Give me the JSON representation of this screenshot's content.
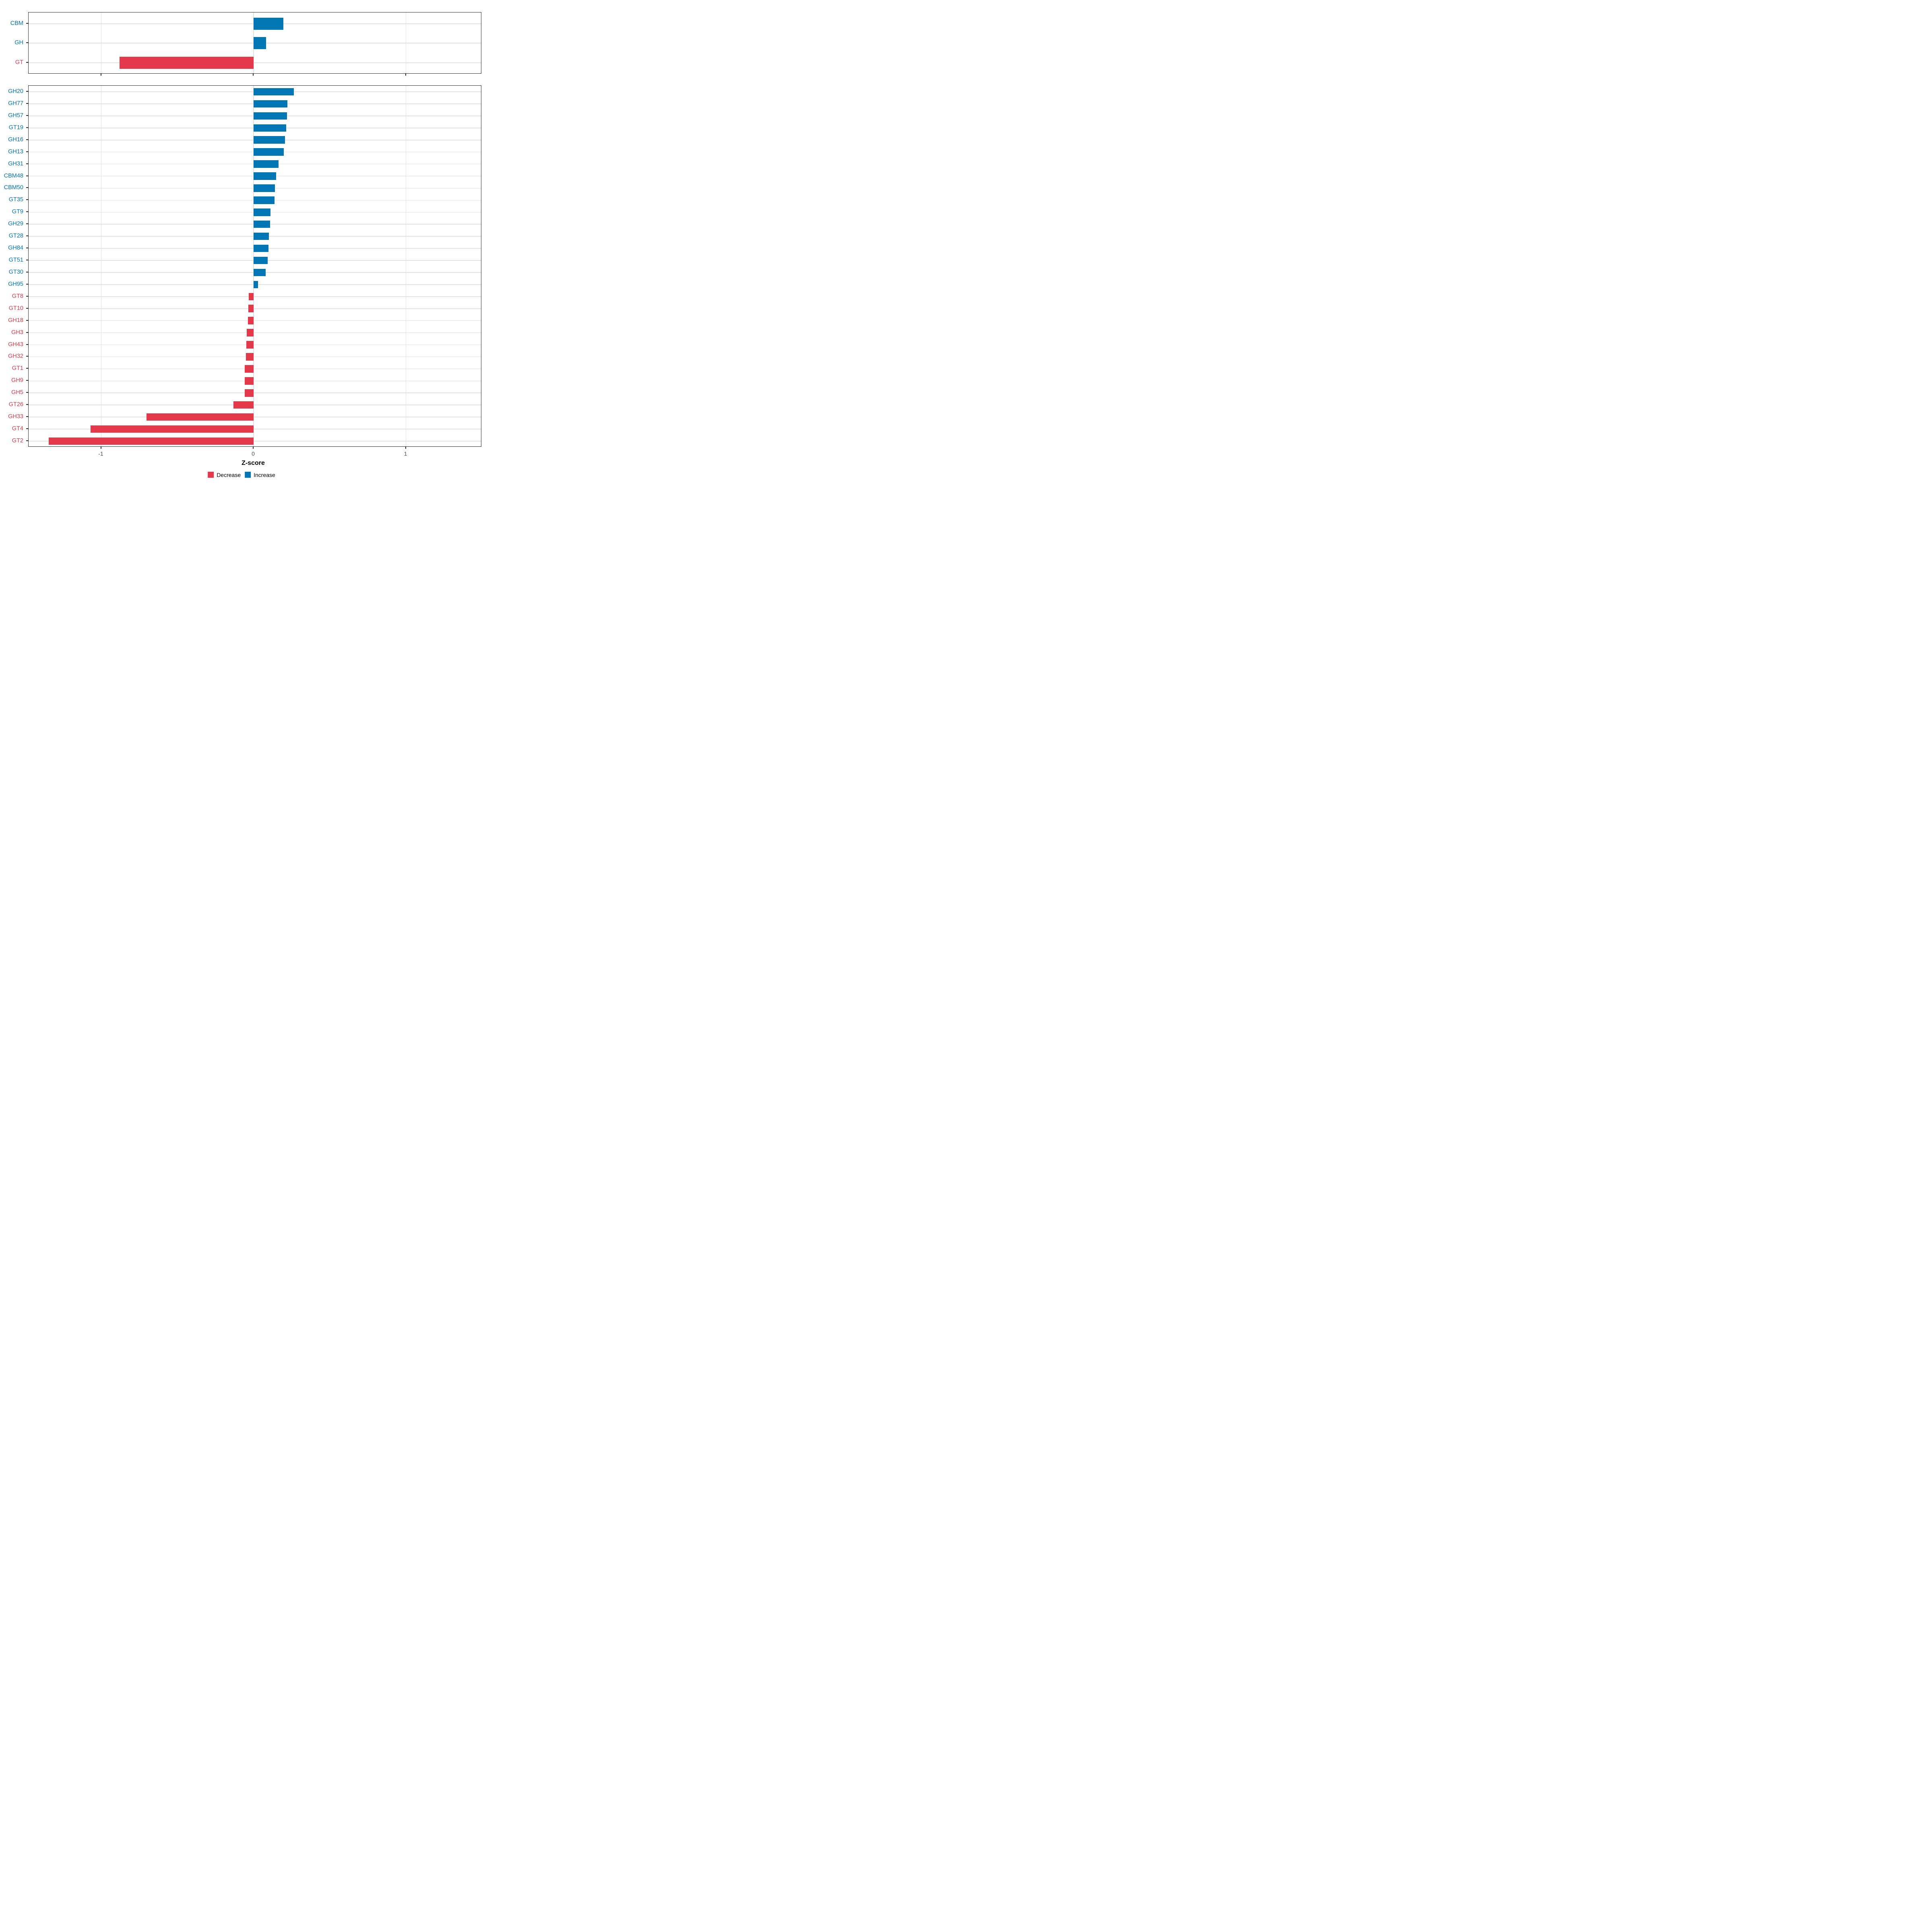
{
  "chart_data": {
    "type": "bar",
    "orientation": "horizontal",
    "title": "",
    "xlabel": "Z-score",
    "ylabel": "",
    "x_ticks": [
      {
        "label": "-1",
        "value": -1
      },
      {
        "label": "0",
        "value": 0
      },
      {
        "label": "1",
        "value": 1
      }
    ],
    "xlim": [
      -1.48,
      1.5
    ],
    "grid": "vertical major gridlines at ticks, one horizontal gridline per category row",
    "legend_position": "bottom-center",
    "panels": [
      {
        "name": "enzyme-class-summary",
        "categories": [
          "CBM",
          "GH",
          "GT"
        ],
        "values": [
          0.195,
          0.082,
          -0.881
        ]
      },
      {
        "name": "enzyme-family-detail",
        "categories": [
          "GH20",
          "GH77",
          "GH57",
          "GT19",
          "GH16",
          "GH13",
          "GH31",
          "CBM48",
          "CBM50",
          "GT35",
          "GT9",
          "GH29",
          "GT28",
          "GH84",
          "GT51",
          "GT30",
          "GH95",
          "GT8",
          "GT10",
          "GH18",
          "GH3",
          "GH43",
          "GH32",
          "GT1",
          "GH9",
          "GH5",
          "GT26",
          "GH33",
          "GT4",
          "GT2"
        ],
        "values": [
          0.264,
          0.221,
          0.22,
          0.214,
          0.207,
          0.199,
          0.165,
          0.149,
          0.139,
          0.138,
          0.11,
          0.108,
          0.101,
          0.097,
          0.092,
          0.08,
          0.029,
          -0.032,
          -0.035,
          -0.036,
          -0.045,
          -0.048,
          -0.049,
          -0.057,
          -0.058,
          -0.059,
          -0.133,
          -0.703,
          -1.069,
          -1.345
        ]
      }
    ]
  },
  "legend": {
    "items": [
      {
        "label": "Decrease",
        "color": "#e4394a"
      },
      {
        "label": "Increase",
        "color": "#0076b4"
      }
    ]
  },
  "colors": {
    "increase": "#0076b4",
    "decrease": "#e4394a",
    "gridline": "#e2e2e2",
    "panel_border": "#2b2b2b",
    "tick_label": "#4d4d4d",
    "axis_title": "#000000",
    "background": "#ffffff"
  }
}
